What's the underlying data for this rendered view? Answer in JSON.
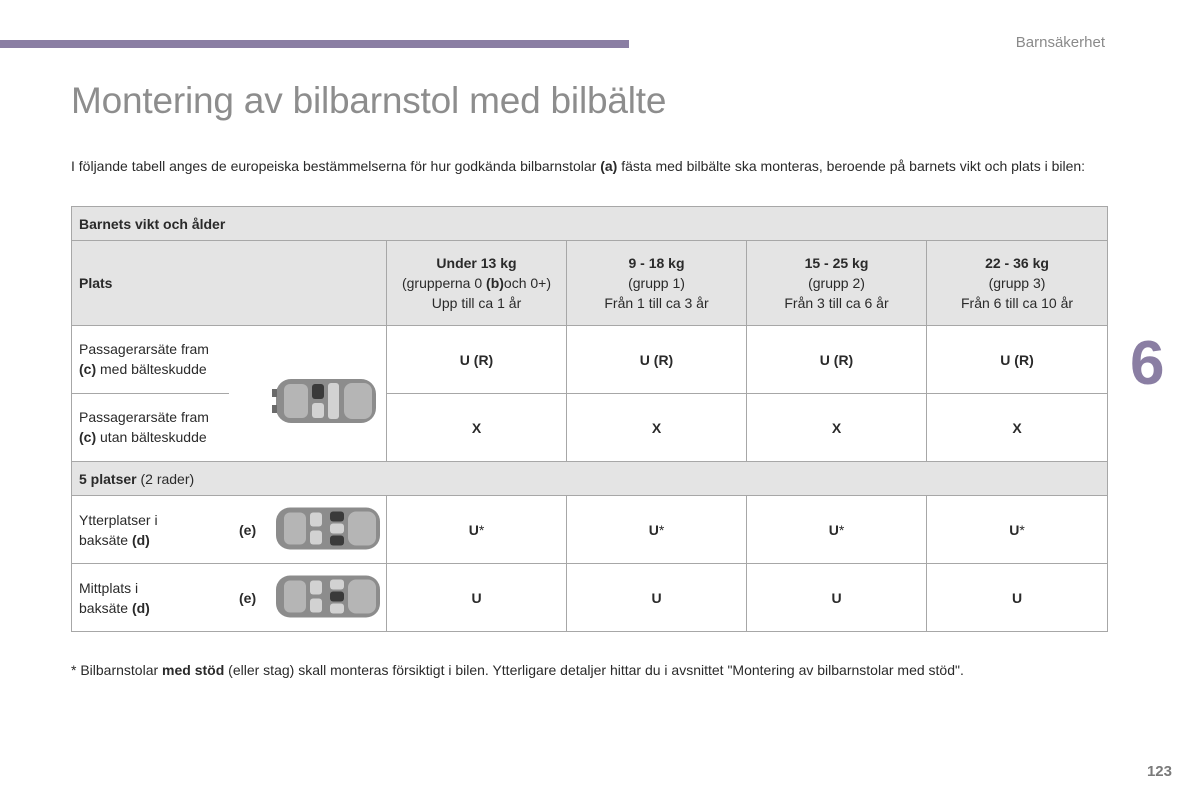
{
  "header": {
    "section": "Barnsäkerhet"
  },
  "title": "Montering av bilbarnstol med bilbälte",
  "intro": {
    "part1": "I följande tabell anges de europeiska bestämmelserna för hur godkända bilbarnstolar ",
    "ref": "(a)",
    "part2": " fästa med bilbälte ska monteras, beroende på barnets vikt och plats i bilen:"
  },
  "table": {
    "header_row": "Barnets vikt och ålder",
    "plats_label": "Plats",
    "columns": [
      {
        "weight": "Under 13 kg",
        "group_pre": "(grupperna 0 ",
        "group_ref": "(b)",
        "group_post": "och 0+)",
        "age": "Upp till ca 1 år"
      },
      {
        "weight": "9 - 18 kg",
        "group": "(grupp 1)",
        "age": "Från 1 till ca 3 år"
      },
      {
        "weight": "15 - 25 kg",
        "group": "(grupp 2)",
        "age": "Från 3 till ca 6 år"
      },
      {
        "weight": "22 - 36 kg",
        "group": "(grupp 3)",
        "age": "Från 6 till ca 10 år"
      }
    ],
    "rows": [
      {
        "line1": "Passagerarsäte fram",
        "ref": "(c)",
        "line2": " med bälteskudde",
        "values": [
          "U (R)",
          "U (R)",
          "U (R)",
          "U (R)"
        ]
      },
      {
        "line1": "Passagerarsäte fram",
        "ref": "(c)",
        "line2": " utan bälteskudde",
        "values": [
          "X",
          "X",
          "X",
          "X"
        ]
      }
    ],
    "group_row": {
      "bold": "5 platser",
      "rest": " (2 rader)"
    },
    "rear_rows": [
      {
        "line1": "Ytterplatser i",
        "line2": "baksäte ",
        "ref": "(d)",
        "note": "(e)",
        "value": "U",
        "mark": "*",
        "values_mark": [
          "*",
          "*",
          "*",
          "*"
        ]
      },
      {
        "line1": "Mittplats i",
        "line2": "baksäte ",
        "ref": "(d)",
        "note": "(e)",
        "value": "U"
      }
    ]
  },
  "footnote": {
    "part1": "* Bilbarnstolar ",
    "bold": "med stöd",
    "part2": " (eller stag) skall monteras försiktigt i bilen. Ytterligare detaljer hittar du i avsnittet \"Montering av bilbarnstolar med stöd\"."
  },
  "chapter_number": "6",
  "page_number": "123",
  "colors": {
    "accent": "#8a7ea3",
    "table_header_bg": "#e4e4e4",
    "border": "#a7a7a7",
    "title_gray": "#8d8d8d"
  },
  "icons": [
    "car-front-seat-icon",
    "car-rear-outer-seats-icon",
    "car-rear-middle-seat-icon"
  ]
}
